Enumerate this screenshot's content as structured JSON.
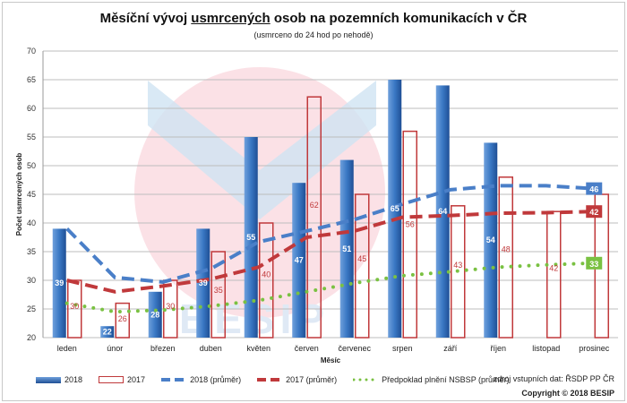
{
  "chart_data": {
    "type": "bar",
    "title_pre": "Měsíční vývoj ",
    "title_underlined": "usmrcených",
    "title_post": " osob na pozemních komunikacích v ČR",
    "subtitle": "(usmrceno do 24 hod po nehodě)",
    "xlabel": "Měsíc",
    "ylabel": "Počet usmrcených osob",
    "ylim": [
      20,
      70
    ],
    "yticks": [
      20,
      25,
      30,
      35,
      40,
      45,
      50,
      55,
      60,
      65,
      70
    ],
    "grid": true,
    "categories": [
      "leden",
      "únor",
      "březen",
      "duben",
      "květen",
      "červen",
      "červenec",
      "srpen",
      "září",
      "říjen",
      "listopad",
      "prosinec"
    ],
    "series": [
      {
        "name": "2018",
        "kind": "bar",
        "color": "#2e6bb8",
        "values": [
          39,
          22,
          28,
          39,
          55,
          47,
          51,
          65,
          64,
          54,
          null,
          null
        ]
      },
      {
        "name": "2017",
        "kind": "bar-outline",
        "color": "#c0393b",
        "values": [
          30,
          26,
          30,
          35,
          40,
          62,
          45,
          56,
          43,
          48,
          42,
          45
        ]
      },
      {
        "name": "2018 (průměr)",
        "kind": "dashed-line",
        "color": "#4a7fc8",
        "values": [
          39,
          30.5,
          29.7,
          32,
          36.7,
          38.6,
          40.6,
          43.3,
          45.8,
          46.5,
          46.5,
          46
        ],
        "end_label": "46"
      },
      {
        "name": "2017 (průměr)",
        "kind": "dashed-line",
        "color": "#c0393b",
        "values": [
          30,
          28,
          29,
          30.2,
          32.3,
          37.5,
          38.6,
          41,
          41.3,
          41.7,
          41.8,
          42
        ],
        "end_label": "42"
      },
      {
        "name": "Předpoklad plnění NSBSP (průměr)",
        "kind": "dotted-line",
        "color": "#7ac142",
        "values": [
          26,
          24.5,
          24.8,
          25.5,
          26.5,
          28,
          29.5,
          30.8,
          31.5,
          32.3,
          32.7,
          33
        ],
        "end_label": "33"
      }
    ],
    "legend_position": "bottom"
  },
  "footer": {
    "source": "zdroj vstupních dat: ŘSDP PP ČR",
    "copyright": "Copyright © 2018 BESIP"
  }
}
